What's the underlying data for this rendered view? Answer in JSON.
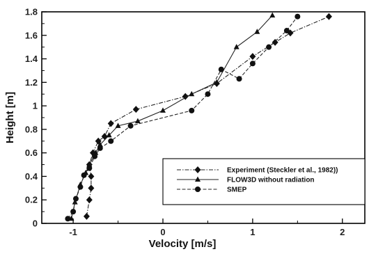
{
  "chart_data": {
    "type": "line",
    "xlabel": "Velocity [m/s]",
    "ylabel": "Height [m]",
    "xlim": [
      -1.35,
      2.25
    ],
    "ylim": [
      0,
      1.8
    ],
    "xticks": [
      -1,
      0,
      1,
      2
    ],
    "yticks": [
      0,
      0.2,
      0.4,
      0.6,
      0.8,
      1,
      1.2,
      1.4,
      1.6,
      1.8
    ],
    "ytick_labels": [
      "0",
      "0.2",
      "0.4",
      "0.6",
      "0.8",
      "1",
      "1.2",
      "1.4",
      "1.6",
      "1.8"
    ],
    "grid": false,
    "legend_position": "lower-right",
    "series": [
      {
        "name": "Experiment (Steckler et al., 1982))",
        "marker": "diamond",
        "line": "dash-dot",
        "points": [
          [
            -0.85,
            0.06
          ],
          [
            -0.82,
            0.2
          ],
          [
            -0.8,
            0.3
          ],
          [
            -0.8,
            0.4
          ],
          [
            -0.82,
            0.5
          ],
          [
            -0.78,
            0.6
          ],
          [
            -0.72,
            0.7
          ],
          [
            -0.65,
            0.74
          ],
          [
            -0.58,
            0.85
          ],
          [
            -0.3,
            0.97
          ],
          [
            0.25,
            1.08
          ],
          [
            0.6,
            1.19
          ],
          [
            1.0,
            1.42
          ],
          [
            1.25,
            1.54
          ],
          [
            1.42,
            1.62
          ],
          [
            1.85,
            1.76
          ]
        ]
      },
      {
        "name": "FLOW3D without radiation",
        "marker": "triangle",
        "line": "solid",
        "points": [
          [
            -1.02,
            0.04
          ],
          [
            -0.98,
            0.18
          ],
          [
            -0.92,
            0.33
          ],
          [
            -0.86,
            0.43
          ],
          [
            -0.82,
            0.5
          ],
          [
            -0.75,
            0.6
          ],
          [
            -0.7,
            0.67
          ],
          [
            -0.6,
            0.75
          ],
          [
            -0.5,
            0.83
          ],
          [
            -0.28,
            0.87
          ],
          [
            0.0,
            0.96
          ],
          [
            0.32,
            1.1
          ],
          [
            0.6,
            1.2
          ],
          [
            0.82,
            1.5
          ],
          [
            1.05,
            1.63
          ],
          [
            1.22,
            1.77
          ]
        ]
      },
      {
        "name": "SMEP",
        "marker": "circle",
        "line": "dashed",
        "points": [
          [
            -1.06,
            0.04
          ],
          [
            -1.0,
            0.1
          ],
          [
            -0.97,
            0.21
          ],
          [
            -0.92,
            0.31
          ],
          [
            -0.88,
            0.41
          ],
          [
            -0.82,
            0.47
          ],
          [
            -0.76,
            0.57
          ],
          [
            -0.7,
            0.64
          ],
          [
            -0.58,
            0.7
          ],
          [
            -0.36,
            0.83
          ],
          [
            0.32,
            0.96
          ],
          [
            0.5,
            1.1
          ],
          [
            0.65,
            1.31
          ],
          [
            0.85,
            1.23
          ],
          [
            1.0,
            1.36
          ],
          [
            1.18,
            1.5
          ],
          [
            1.38,
            1.64
          ],
          [
            1.5,
            1.76
          ]
        ]
      }
    ]
  }
}
